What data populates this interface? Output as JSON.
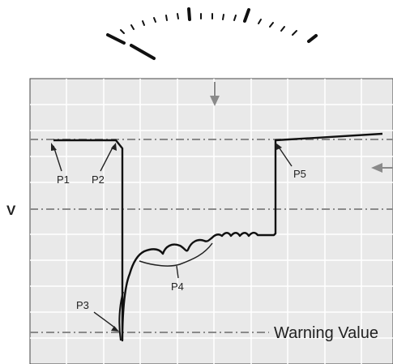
{
  "labels": {
    "v_axis": "V",
    "p1": "P1",
    "p2": "P2",
    "p3": "P3",
    "p4": "P4",
    "p5": "P5",
    "warning": "Warning Value"
  },
  "colors": {
    "panel_bg": "#e9e9e9",
    "grid": "#ffffff",
    "trace": "#111111",
    "dash": "#8a8a8a",
    "arrow": "#8a8a8a"
  }
}
